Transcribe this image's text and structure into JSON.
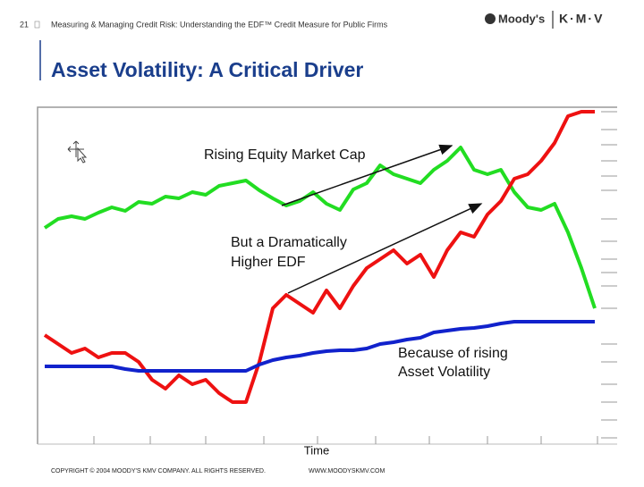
{
  "header": {
    "page_number": "21",
    "text": "Measuring & Managing Credit Risk: Understanding the EDF™ Credit Measure for Public Firms",
    "logo_left": "Moody's",
    "logo_right": "K·M·V"
  },
  "chart_data": {
    "type": "line",
    "title": "Asset Volatility: A Critical Driver",
    "x_label": "Time",
    "ylim": [
      0,
      370
    ],
    "series": [
      {
        "name": "Equity Market Cap",
        "color": "#22dd22",
        "values": [
          235,
          245,
          248,
          245,
          252,
          258,
          254,
          264,
          262,
          270,
          268,
          275,
          272,
          282,
          285,
          288,
          277,
          268,
          260,
          265,
          275,
          262,
          255,
          278,
          285,
          305,
          295,
          290,
          285,
          300,
          310,
          325,
          300,
          295,
          300,
          275,
          258,
          255,
          262,
          230,
          190,
          145
        ]
      },
      {
        "name": "EDF",
        "color": "#ee1111",
        "values": [
          115,
          105,
          95,
          100,
          90,
          95,
          95,
          85,
          65,
          55,
          70,
          60,
          65,
          50,
          40,
          40,
          85,
          145,
          160,
          150,
          140,
          165,
          145,
          170,
          190,
          200,
          210,
          195,
          205,
          180,
          210,
          230,
          225,
          250,
          265,
          290,
          295,
          310,
          330,
          360,
          365,
          365
        ]
      },
      {
        "name": "Asset Volatility",
        "color": "#1122cc",
        "values": [
          80,
          80,
          80,
          80,
          80,
          80,
          77,
          75,
          75,
          75,
          75,
          75,
          75,
          75,
          75,
          75,
          82,
          87,
          90,
          92,
          95,
          97,
          98,
          98,
          100,
          105,
          107,
          110,
          112,
          118,
          120,
          122,
          123,
          125,
          128,
          130,
          130,
          130,
          130,
          130,
          130,
          130
        ]
      }
    ],
    "annotations": [
      "Rising Equity Market Cap",
      "But a Dramatically",
      "Higher EDF",
      "Because of rising",
      "Asset Volatility"
    ]
  },
  "footer": {
    "copyright": "COPYRIGHT © 2004 MOODY'S KMV COMPANY. ALL RIGHTS RESERVED.",
    "url": "WWW.MOODYSKMV.COM"
  }
}
